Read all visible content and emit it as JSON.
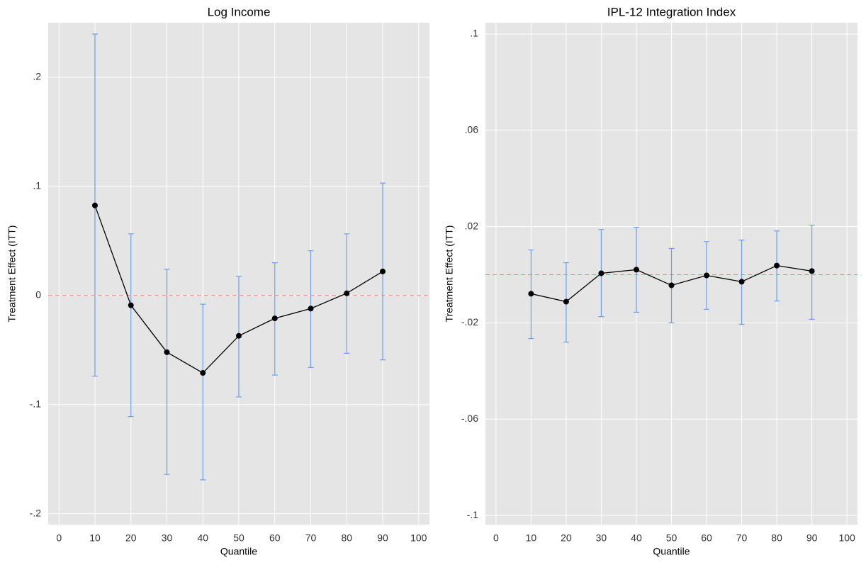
{
  "chart_data": [
    {
      "type": "line",
      "title": "Log Income",
      "x_label": "Quantile",
      "y_label": "Treatment Effect (ITT)",
      "x": [
        10,
        20,
        30,
        40,
        50,
        60,
        70,
        80,
        90
      ],
      "values": [
        0.0825,
        -0.009,
        -0.052,
        -0.071,
        -0.037,
        -0.021,
        -0.012,
        0.002,
        0.022
      ],
      "ci_upper": [
        0.2396,
        0.0565,
        0.024,
        -0.008,
        0.0175,
        0.03,
        0.041,
        0.0565,
        0.103
      ],
      "ci_lower": [
        -0.074,
        -0.111,
        -0.164,
        -0.169,
        -0.093,
        -0.073,
        -0.066,
        -0.053,
        -0.059
      ],
      "color": "#000000",
      "error_color": "#6d9eeb",
      "hline": 0,
      "hline_color": "#f08080",
      "xlim": [
        -3,
        103
      ],
      "ylim": [
        -0.21,
        0.25
      ],
      "xticks": [
        0,
        10,
        20,
        30,
        40,
        50,
        60,
        70,
        80,
        90,
        100
      ],
      "yticks": [
        {
          "value": -0.2,
          "label": "-.2"
        },
        {
          "value": -0.1,
          "label": "-.1"
        },
        0,
        {
          "value": 0.1,
          "label": ".1"
        },
        {
          "value": 0.2,
          "label": ".2"
        }
      ],
      "grid": true
    },
    {
      "type": "line",
      "title": "IPL-12 Integration Index",
      "x_label": "Quantile",
      "y_label": "Treatment Effect (ITT)",
      "x": [
        10,
        20,
        30,
        40,
        50,
        60,
        70,
        80,
        90
      ],
      "values": [
        -0.0079,
        -0.0112,
        0.0006,
        0.0021,
        -0.0044,
        -0.0003,
        -0.0029,
        0.0038,
        0.0015
      ],
      "ci_upper": [
        0.0103,
        0.005,
        0.0188,
        0.0197,
        0.0109,
        0.0138,
        0.0144,
        0.0182,
        0.0206
      ],
      "ci_lower": [
        -0.0265,
        -0.028,
        -0.0174,
        -0.0156,
        -0.02,
        -0.0144,
        -0.0206,
        -0.0109,
        -0.0185
      ],
      "color": "#000000",
      "error_color": "#6d9eeb",
      "hline": 0,
      "hline_color": "#f08080",
      "xlim": [
        -3,
        103
      ],
      "ylim": [
        -0.1038,
        0.1047
      ],
      "xticks": [
        0,
        10,
        20,
        30,
        40,
        50,
        60,
        70,
        80,
        90,
        100
      ],
      "yticks": [
        {
          "value": -0.1,
          "label": "-.1"
        },
        {
          "value": -0.06,
          "label": "-.06"
        },
        {
          "value": -0.02,
          "label": "-.02"
        },
        {
          "value": 0.02,
          "label": ".02"
        },
        {
          "value": 0.06,
          "label": ".06"
        },
        {
          "value": 0.1,
          "label": ".1"
        }
      ],
      "grid": true
    }
  ]
}
